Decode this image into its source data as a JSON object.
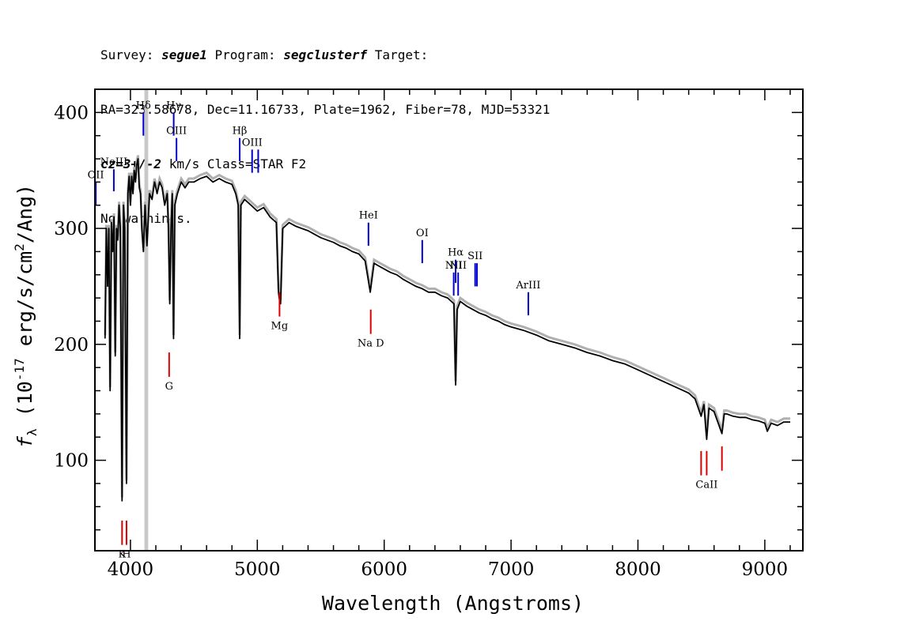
{
  "header": {
    "line1": {
      "survey_label": "Survey: ",
      "survey": "segue1",
      "program_label": " Program: ",
      "program": "segclusterf",
      "target_label": " Target:"
    },
    "line2": "RA=323.58678, Dec=11.16733, Plate=1962, Fiber=78, MJD=53321",
    "line3": {
      "cz": "cz=3+/-2",
      "rest": " km/s Class=STAR F2"
    },
    "line4": "No warnings."
  },
  "chart_data": {
    "type": "line",
    "xlabel": "Wavelength (Angstroms)",
    "ylabel": "f_λ (10^-17 erg/s/cm^2/Ang)",
    "xlim": [
      3720,
      9300
    ],
    "ylim": [
      22,
      420
    ],
    "xticks": [
      4000,
      5000,
      6000,
      7000,
      8000,
      9000
    ],
    "yticks": [
      100,
      200,
      300,
      400
    ],
    "grid": false,
    "masked_region": [
      4110,
      4140
    ],
    "colors": {
      "spectrum": "#000000",
      "error": "#b0b0b0",
      "emission": "#0000cc",
      "absorption": "#dd0000",
      "mask": "#c8c8c8"
    },
    "spectrum": [
      [
        3800,
        205
      ],
      [
        3810,
        300
      ],
      [
        3820,
        250
      ],
      [
        3830,
        300
      ],
      [
        3840,
        160
      ],
      [
        3850,
        305
      ],
      [
        3860,
        280
      ],
      [
        3870,
        310
      ],
      [
        3880,
        190
      ],
      [
        3890,
        300
      ],
      [
        3900,
        290
      ],
      [
        3910,
        320
      ],
      [
        3920,
        300
      ],
      [
        3934,
        65
      ],
      [
        3945,
        320
      ],
      [
        3955,
        300
      ],
      [
        3969,
        80
      ],
      [
        3980,
        330
      ],
      [
        3990,
        345
      ],
      [
        4000,
        320
      ],
      [
        4010,
        345
      ],
      [
        4020,
        330
      ],
      [
        4030,
        350
      ],
      [
        4040,
        340
      ],
      [
        4050,
        355
      ],
      [
        4060,
        360
      ],
      [
        4070,
        335
      ],
      [
        4080,
        330
      ],
      [
        4090,
        300
      ],
      [
        4102,
        280
      ],
      [
        4115,
        320
      ],
      [
        4130,
        285
      ],
      [
        4150,
        330
      ],
      [
        4170,
        325
      ],
      [
        4190,
        340
      ],
      [
        4210,
        330
      ],
      [
        4230,
        340
      ],
      [
        4250,
        335
      ],
      [
        4270,
        320
      ],
      [
        4290,
        330
      ],
      [
        4300,
        300
      ],
      [
        4310,
        235
      ],
      [
        4320,
        300
      ],
      [
        4330,
        330
      ],
      [
        4340,
        205
      ],
      [
        4350,
        320
      ],
      [
        4370,
        330
      ],
      [
        4400,
        340
      ],
      [
        4430,
        335
      ],
      [
        4460,
        340
      ],
      [
        4500,
        340
      ],
      [
        4550,
        343
      ],
      [
        4600,
        345
      ],
      [
        4650,
        340
      ],
      [
        4700,
        343
      ],
      [
        4750,
        340
      ],
      [
        4800,
        338
      ],
      [
        4830,
        330
      ],
      [
        4850,
        320
      ],
      [
        4861,
        205
      ],
      [
        4870,
        320
      ],
      [
        4900,
        325
      ],
      [
        4950,
        320
      ],
      [
        5000,
        315
      ],
      [
        5050,
        318
      ],
      [
        5100,
        310
      ],
      [
        5150,
        305
      ],
      [
        5167,
        245
      ],
      [
        5172,
        240
      ],
      [
        5183,
        235
      ],
      [
        5200,
        300
      ],
      [
        5250,
        305
      ],
      [
        5300,
        302
      ],
      [
        5350,
        300
      ],
      [
        5400,
        298
      ],
      [
        5450,
        295
      ],
      [
        5500,
        292
      ],
      [
        5550,
        290
      ],
      [
        5600,
        288
      ],
      [
        5650,
        285
      ],
      [
        5700,
        283
      ],
      [
        5750,
        280
      ],
      [
        5800,
        278
      ],
      [
        5850,
        272
      ],
      [
        5890,
        245
      ],
      [
        5896,
        250
      ],
      [
        5920,
        270
      ],
      [
        5950,
        268
      ],
      [
        6000,
        265
      ],
      [
        6050,
        262
      ],
      [
        6100,
        260
      ],
      [
        6150,
        256
      ],
      [
        6200,
        253
      ],
      [
        6250,
        250
      ],
      [
        6300,
        248
      ],
      [
        6350,
        245
      ],
      [
        6400,
        245
      ],
      [
        6450,
        242
      ],
      [
        6500,
        240
      ],
      [
        6550,
        235
      ],
      [
        6563,
        165
      ],
      [
        6575,
        230
      ],
      [
        6600,
        237
      ],
      [
        6650,
        233
      ],
      [
        6700,
        230
      ],
      [
        6750,
        227
      ],
      [
        6800,
        225
      ],
      [
        6850,
        222
      ],
      [
        6900,
        220
      ],
      [
        6950,
        217
      ],
      [
        7000,
        215
      ],
      [
        7100,
        212
      ],
      [
        7200,
        208
      ],
      [
        7300,
        203
      ],
      [
        7400,
        200
      ],
      [
        7500,
        197
      ],
      [
        7600,
        193
      ],
      [
        7700,
        190
      ],
      [
        7800,
        186
      ],
      [
        7900,
        183
      ],
      [
        8000,
        178
      ],
      [
        8100,
        173
      ],
      [
        8200,
        168
      ],
      [
        8300,
        163
      ],
      [
        8400,
        158
      ],
      [
        8450,
        153
      ],
      [
        8498,
        138
      ],
      [
        8520,
        148
      ],
      [
        8542,
        118
      ],
      [
        8560,
        145
      ],
      [
        8600,
        142
      ],
      [
        8662,
        123
      ],
      [
        8680,
        140
      ],
      [
        8700,
        140
      ],
      [
        8750,
        138
      ],
      [
        8800,
        137
      ],
      [
        8850,
        137
      ],
      [
        8900,
        135
      ],
      [
        8950,
        134
      ],
      [
        9000,
        132
      ],
      [
        9020,
        125
      ],
      [
        9050,
        132
      ],
      [
        9100,
        130
      ],
      [
        9150,
        133
      ],
      [
        9200,
        133
      ]
    ],
    "emission_lines": [
      {
        "label": "OII",
        "x": 3727,
        "y_top": 340,
        "y_bot": 320
      },
      {
        "label": "NeIII",
        "x": 3869,
        "y_top": 351,
        "y_bot": 332
      },
      {
        "label": "Hδ",
        "x": 4102,
        "y_top": 400,
        "y_bot": 380
      },
      {
        "label": "Hγ",
        "x": 4341,
        "y_top": 400,
        "y_bot": 380
      },
      {
        "label": "OIII",
        "x": 4363,
        "y_top": 378,
        "y_bot": 358
      },
      {
        "label": "Hβ",
        "x": 4861,
        "y_top": 378,
        "y_bot": 358
      },
      {
        "label": "OIII",
        "x": 4959,
        "y_top": 368,
        "y_bot": 348
      },
      {
        "label": "",
        "x": 5007,
        "y_top": 368,
        "y_bot": 348
      },
      {
        "label": "HeI",
        "x": 5876,
        "y_top": 305,
        "y_bot": 285
      },
      {
        "label": "OI",
        "x": 6300,
        "y_top": 290,
        "y_bot": 270
      },
      {
        "label": "NII",
        "x": 6548,
        "y_top": 262,
        "y_bot": 242
      },
      {
        "label": "Hα",
        "x": 6563,
        "y_top": 273,
        "y_bot": 253
      },
      {
        "label": "NII",
        "x": 6583,
        "y_top": 262,
        "y_bot": 242
      },
      {
        "label": "SII",
        "x": 6717,
        "y_top": 270,
        "y_bot": 250
      },
      {
        "label": "",
        "x": 6731,
        "y_top": 270,
        "y_bot": 250
      },
      {
        "label": "ArIII",
        "x": 7136,
        "y_top": 245,
        "y_bot": 225
      }
    ],
    "absorption_lines": [
      {
        "label": "K",
        "x": 3934,
        "y_top": 48,
        "y_bot": 27
      },
      {
        "label": "H",
        "x": 3969,
        "y_top": 48,
        "y_bot": 27
      },
      {
        "label": "G",
        "x": 4305,
        "y_top": 193,
        "y_bot": 172
      },
      {
        "label": "Mg",
        "x": 5175,
        "y_top": 245,
        "y_bot": 224
      },
      {
        "label": "Na D",
        "x": 5894,
        "y_top": 230,
        "y_bot": 209
      },
      {
        "label": "",
        "x": 8498,
        "y_top": 108,
        "y_bot": 87
      },
      {
        "label": "CaII",
        "x": 8542,
        "y_top": 108,
        "y_bot": 87
      },
      {
        "label": "",
        "x": 8662,
        "y_top": 112,
        "y_bot": 91
      }
    ]
  }
}
